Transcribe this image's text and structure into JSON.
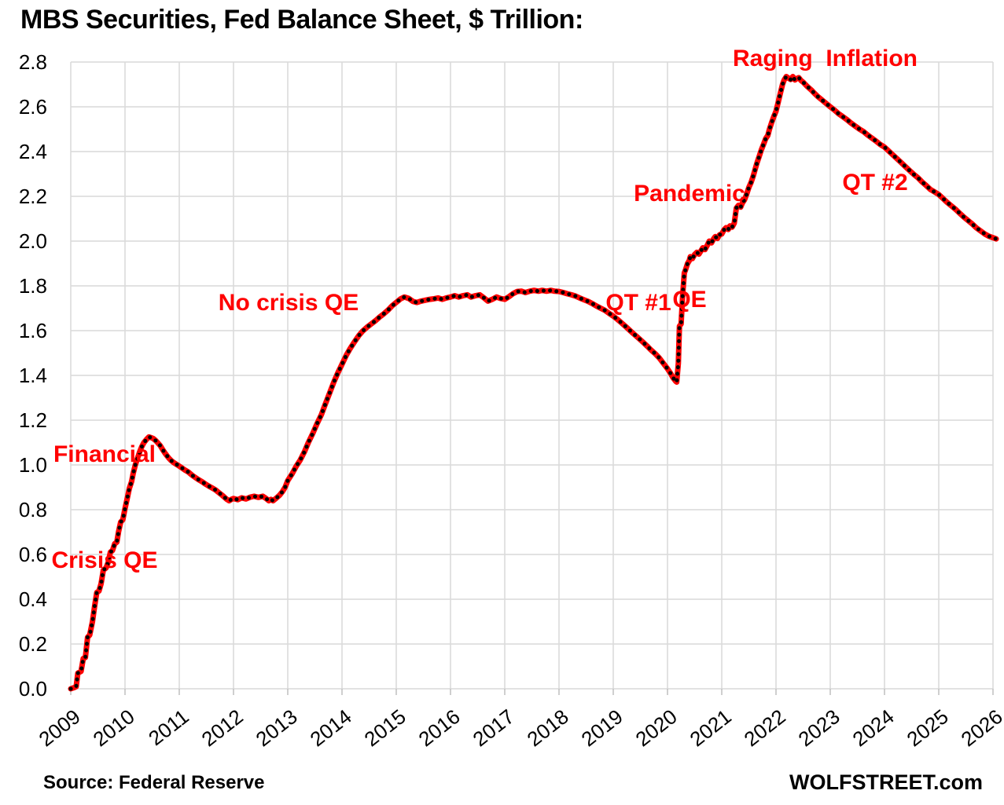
{
  "title": "MBS Securities, Fed Balance Sheet, $ Trillion:",
  "annotations": {
    "financial_crisis_line1": "Financial",
    "financial_crisis_line2": "Crisis QE",
    "no_crisis": "No crisis QE",
    "qt1": "QT #1",
    "pandemic_line1": "Pandemic",
    "pandemic_line2": "QE",
    "raging_inflation": "Raging  Inflation",
    "qt2": "QT #2"
  },
  "footer": {
    "source": "Source: Federal Reserve",
    "brand": "WOLFSTREET.com"
  },
  "chart_data": {
    "type": "line",
    "title": "MBS Securities, Fed Balance Sheet, $ Trillion:",
    "xlabel": "",
    "ylabel": "",
    "xlim": [
      2009,
      2026.2
    ],
    "ylim": [
      0.0,
      2.8
    ],
    "grid": true,
    "grid_color": "#d9d9d9",
    "tick_color": "#bfbfbf",
    "background": "#ffffff",
    "legend": "none",
    "x_ticks": [
      2009,
      2010,
      2011,
      2012,
      2013,
      2014,
      2015,
      2016,
      2017,
      2018,
      2019,
      2020,
      2021,
      2022,
      2023,
      2024,
      2025,
      2026
    ],
    "y_ticks": [
      0.0,
      0.2,
      0.4,
      0.6,
      0.8,
      1.0,
      1.2,
      1.4,
      1.6,
      1.8,
      2.0,
      2.2,
      2.4,
      2.6,
      2.8
    ],
    "series": [
      {
        "name": "MBS Securities",
        "color": "#ff0000",
        "marker_color": "#000000",
        "points": [
          [
            2009.0,
            0.0
          ],
          [
            2009.06,
            0.005
          ],
          [
            2009.1,
            0.01
          ],
          [
            2009.13,
            0.07
          ],
          [
            2009.19,
            0.078
          ],
          [
            2009.23,
            0.135
          ],
          [
            2009.27,
            0.14
          ],
          [
            2009.31,
            0.23
          ],
          [
            2009.35,
            0.24
          ],
          [
            2009.4,
            0.3
          ],
          [
            2009.44,
            0.37
          ],
          [
            2009.48,
            0.43
          ],
          [
            2009.52,
            0.437
          ],
          [
            2009.56,
            0.47
          ],
          [
            2009.6,
            0.53
          ],
          [
            2009.65,
            0.54
          ],
          [
            2009.69,
            0.565
          ],
          [
            2009.73,
            0.61
          ],
          [
            2009.77,
            0.618
          ],
          [
            2009.81,
            0.648
          ],
          [
            2009.85,
            0.655
          ],
          [
            2009.88,
            0.7
          ],
          [
            2009.92,
            0.745
          ],
          [
            2009.96,
            0.755
          ],
          [
            2010.0,
            0.805
          ],
          [
            2010.04,
            0.85
          ],
          [
            2010.08,
            0.895
          ],
          [
            2010.12,
            0.925
          ],
          [
            2010.15,
            0.962
          ],
          [
            2010.19,
            1.0
          ],
          [
            2010.23,
            1.03
          ],
          [
            2010.27,
            1.058
          ],
          [
            2010.31,
            1.082
          ],
          [
            2010.35,
            1.1
          ],
          [
            2010.4,
            1.115
          ],
          [
            2010.44,
            1.125
          ],
          [
            2010.48,
            1.122
          ],
          [
            2010.52,
            1.118
          ],
          [
            2010.56,
            1.11
          ],
          [
            2010.6,
            1.1
          ],
          [
            2010.65,
            1.086
          ],
          [
            2010.69,
            1.07
          ],
          [
            2010.73,
            1.055
          ],
          [
            2010.77,
            1.042
          ],
          [
            2010.81,
            1.03
          ],
          [
            2010.85,
            1.02
          ],
          [
            2010.9,
            1.01
          ],
          [
            2010.94,
            1.004
          ],
          [
            2010.98,
            0.998
          ],
          [
            2011.04,
            0.988
          ],
          [
            2011.1,
            0.978
          ],
          [
            2011.17,
            0.968
          ],
          [
            2011.23,
            0.955
          ],
          [
            2011.29,
            0.945
          ],
          [
            2011.35,
            0.935
          ],
          [
            2011.42,
            0.925
          ],
          [
            2011.48,
            0.915
          ],
          [
            2011.54,
            0.906
          ],
          [
            2011.6,
            0.898
          ],
          [
            2011.67,
            0.888
          ],
          [
            2011.73,
            0.876
          ],
          [
            2011.79,
            0.865
          ],
          [
            2011.83,
            0.856
          ],
          [
            2011.88,
            0.846
          ],
          [
            2011.92,
            0.84
          ],
          [
            2011.96,
            0.846
          ],
          [
            2012.0,
            0.85
          ],
          [
            2012.08,
            0.845
          ],
          [
            2012.15,
            0.853
          ],
          [
            2012.23,
            0.848
          ],
          [
            2012.31,
            0.856
          ],
          [
            2012.38,
            0.86
          ],
          [
            2012.46,
            0.855
          ],
          [
            2012.54,
            0.86
          ],
          [
            2012.6,
            0.85
          ],
          [
            2012.65,
            0.84
          ],
          [
            2012.69,
            0.846
          ],
          [
            2012.73,
            0.84
          ],
          [
            2012.79,
            0.852
          ],
          [
            2012.85,
            0.865
          ],
          [
            2012.9,
            0.88
          ],
          [
            2012.95,
            0.9
          ],
          [
            2013.0,
            0.93
          ],
          [
            2013.08,
            0.96
          ],
          [
            2013.15,
            0.992
          ],
          [
            2013.23,
            1.022
          ],
          [
            2013.31,
            1.06
          ],
          [
            2013.38,
            1.1
          ],
          [
            2013.46,
            1.14
          ],
          [
            2013.54,
            1.185
          ],
          [
            2013.62,
            1.225
          ],
          [
            2013.69,
            1.27
          ],
          [
            2013.77,
            1.32
          ],
          [
            2013.85,
            1.37
          ],
          [
            2013.92,
            1.41
          ],
          [
            2014.0,
            1.45
          ],
          [
            2014.08,
            1.49
          ],
          [
            2014.15,
            1.52
          ],
          [
            2014.23,
            1.55
          ],
          [
            2014.31,
            1.578
          ],
          [
            2014.38,
            1.598
          ],
          [
            2014.46,
            1.615
          ],
          [
            2014.54,
            1.63
          ],
          [
            2014.62,
            1.645
          ],
          [
            2014.69,
            1.66
          ],
          [
            2014.77,
            1.675
          ],
          [
            2014.85,
            1.692
          ],
          [
            2014.92,
            1.71
          ],
          [
            2015.0,
            1.726
          ],
          [
            2015.08,
            1.742
          ],
          [
            2015.15,
            1.75
          ],
          [
            2015.23,
            1.744
          ],
          [
            2015.31,
            1.73
          ],
          [
            2015.38,
            1.726
          ],
          [
            2015.46,
            1.732
          ],
          [
            2015.54,
            1.736
          ],
          [
            2015.62,
            1.74
          ],
          [
            2015.69,
            1.742
          ],
          [
            2015.77,
            1.746
          ],
          [
            2015.85,
            1.74
          ],
          [
            2015.92,
            1.746
          ],
          [
            2016.0,
            1.75
          ],
          [
            2016.08,
            1.756
          ],
          [
            2016.15,
            1.75
          ],
          [
            2016.23,
            1.756
          ],
          [
            2016.31,
            1.76
          ],
          [
            2016.38,
            1.75
          ],
          [
            2016.46,
            1.756
          ],
          [
            2016.54,
            1.76
          ],
          [
            2016.62,
            1.746
          ],
          [
            2016.69,
            1.732
          ],
          [
            2016.77,
            1.74
          ],
          [
            2016.85,
            1.75
          ],
          [
            2016.92,
            1.744
          ],
          [
            2017.0,
            1.74
          ],
          [
            2017.08,
            1.752
          ],
          [
            2017.15,
            1.765
          ],
          [
            2017.23,
            1.775
          ],
          [
            2017.31,
            1.776
          ],
          [
            2017.38,
            1.77
          ],
          [
            2017.46,
            1.776
          ],
          [
            2017.54,
            1.78
          ],
          [
            2017.62,
            1.776
          ],
          [
            2017.69,
            1.78
          ],
          [
            2017.77,
            1.776
          ],
          [
            2017.85,
            1.78
          ],
          [
            2017.92,
            1.776
          ],
          [
            2018.0,
            1.775
          ],
          [
            2018.08,
            1.77
          ],
          [
            2018.15,
            1.765
          ],
          [
            2018.23,
            1.76
          ],
          [
            2018.31,
            1.754
          ],
          [
            2018.38,
            1.746
          ],
          [
            2018.46,
            1.738
          ],
          [
            2018.54,
            1.73
          ],
          [
            2018.62,
            1.72
          ],
          [
            2018.69,
            1.71
          ],
          [
            2018.77,
            1.7
          ],
          [
            2018.85,
            1.69
          ],
          [
            2018.92,
            1.678
          ],
          [
            2019.0,
            1.665
          ],
          [
            2019.08,
            1.65
          ],
          [
            2019.15,
            1.635
          ],
          [
            2019.23,
            1.618
          ],
          [
            2019.31,
            1.6
          ],
          [
            2019.38,
            1.585
          ],
          [
            2019.46,
            1.568
          ],
          [
            2019.54,
            1.55
          ],
          [
            2019.62,
            1.532
          ],
          [
            2019.69,
            1.515
          ],
          [
            2019.77,
            1.498
          ],
          [
            2019.85,
            1.478
          ],
          [
            2019.92,
            1.455
          ],
          [
            2020.0,
            1.43
          ],
          [
            2020.06,
            1.408
          ],
          [
            2020.1,
            1.39
          ],
          [
            2020.15,
            1.374
          ],
          [
            2020.17,
            1.37
          ],
          [
            2020.2,
            1.455
          ],
          [
            2020.22,
            1.62
          ],
          [
            2020.25,
            1.63
          ],
          [
            2020.28,
            1.76
          ],
          [
            2020.31,
            1.858
          ],
          [
            2020.33,
            1.87
          ],
          [
            2020.37,
            1.9
          ],
          [
            2020.4,
            1.912
          ],
          [
            2020.42,
            1.93
          ],
          [
            2020.46,
            1.922
          ],
          [
            2020.5,
            1.94
          ],
          [
            2020.54,
            1.95
          ],
          [
            2020.58,
            1.942
          ],
          [
            2020.62,
            1.958
          ],
          [
            2020.65,
            1.97
          ],
          [
            2020.69,
            1.962
          ],
          [
            2020.73,
            1.98
          ],
          [
            2020.77,
            2.0
          ],
          [
            2020.81,
            1.992
          ],
          [
            2020.85,
            2.01
          ],
          [
            2020.88,
            2.02
          ],
          [
            2020.92,
            2.012
          ],
          [
            2020.96,
            2.028
          ],
          [
            2021.0,
            2.032
          ],
          [
            2021.04,
            2.05
          ],
          [
            2021.08,
            2.06
          ],
          [
            2021.12,
            2.052
          ],
          [
            2021.15,
            2.068
          ],
          [
            2021.19,
            2.062
          ],
          [
            2021.23,
            2.08
          ],
          [
            2021.27,
            2.148
          ],
          [
            2021.31,
            2.16
          ],
          [
            2021.35,
            2.152
          ],
          [
            2021.38,
            2.17
          ],
          [
            2021.42,
            2.185
          ],
          [
            2021.46,
            2.21
          ],
          [
            2021.5,
            2.24
          ],
          [
            2021.54,
            2.262
          ],
          [
            2021.58,
            2.29
          ],
          [
            2021.62,
            2.325
          ],
          [
            2021.65,
            2.35
          ],
          [
            2021.69,
            2.378
          ],
          [
            2021.73,
            2.408
          ],
          [
            2021.77,
            2.432
          ],
          [
            2021.81,
            2.458
          ],
          [
            2021.85,
            2.472
          ],
          [
            2021.88,
            2.5
          ],
          [
            2021.92,
            2.53
          ],
          [
            2021.96,
            2.556
          ],
          [
            2022.0,
            2.58
          ],
          [
            2022.04,
            2.62
          ],
          [
            2022.08,
            2.66
          ],
          [
            2022.12,
            2.7
          ],
          [
            2022.15,
            2.72
          ],
          [
            2022.19,
            2.735
          ],
          [
            2022.23,
            2.728
          ],
          [
            2022.27,
            2.722
          ],
          [
            2022.31,
            2.735
          ],
          [
            2022.35,
            2.72
          ],
          [
            2022.38,
            2.726
          ],
          [
            2022.42,
            2.73
          ],
          [
            2022.46,
            2.718
          ],
          [
            2022.5,
            2.71
          ],
          [
            2022.54,
            2.7
          ],
          [
            2022.58,
            2.69
          ],
          [
            2022.65,
            2.675
          ],
          [
            2022.71,
            2.66
          ],
          [
            2022.77,
            2.646
          ],
          [
            2022.83,
            2.634
          ],
          [
            2022.9,
            2.62
          ],
          [
            2022.96,
            2.608
          ],
          [
            2023.0,
            2.6
          ],
          [
            2023.08,
            2.585
          ],
          [
            2023.15,
            2.57
          ],
          [
            2023.23,
            2.556
          ],
          [
            2023.31,
            2.542
          ],
          [
            2023.38,
            2.528
          ],
          [
            2023.46,
            2.514
          ],
          [
            2023.54,
            2.5
          ],
          [
            2023.62,
            2.488
          ],
          [
            2023.69,
            2.474
          ],
          [
            2023.77,
            2.46
          ],
          [
            2023.85,
            2.446
          ],
          [
            2023.92,
            2.432
          ],
          [
            2024.0,
            2.42
          ],
          [
            2024.08,
            2.402
          ],
          [
            2024.15,
            2.386
          ],
          [
            2024.23,
            2.368
          ],
          [
            2024.31,
            2.35
          ],
          [
            2024.38,
            2.334
          ],
          [
            2024.46,
            2.316
          ],
          [
            2024.54,
            2.298
          ],
          [
            2024.62,
            2.282
          ],
          [
            2024.69,
            2.265
          ],
          [
            2024.77,
            2.248
          ],
          [
            2024.85,
            2.23
          ],
          [
            2024.92,
            2.22
          ],
          [
            2025.0,
            2.208
          ],
          [
            2025.08,
            2.19
          ],
          [
            2025.15,
            2.174
          ],
          [
            2025.23,
            2.158
          ],
          [
            2025.31,
            2.142
          ],
          [
            2025.38,
            2.126
          ],
          [
            2025.46,
            2.108
          ],
          [
            2025.54,
            2.092
          ],
          [
            2025.62,
            2.076
          ],
          [
            2025.69,
            2.06
          ],
          [
            2025.77,
            2.046
          ],
          [
            2025.85,
            2.032
          ],
          [
            2025.92,
            2.022
          ],
          [
            2026.0,
            2.015
          ],
          [
            2026.06,
            2.01
          ]
        ]
      }
    ]
  }
}
